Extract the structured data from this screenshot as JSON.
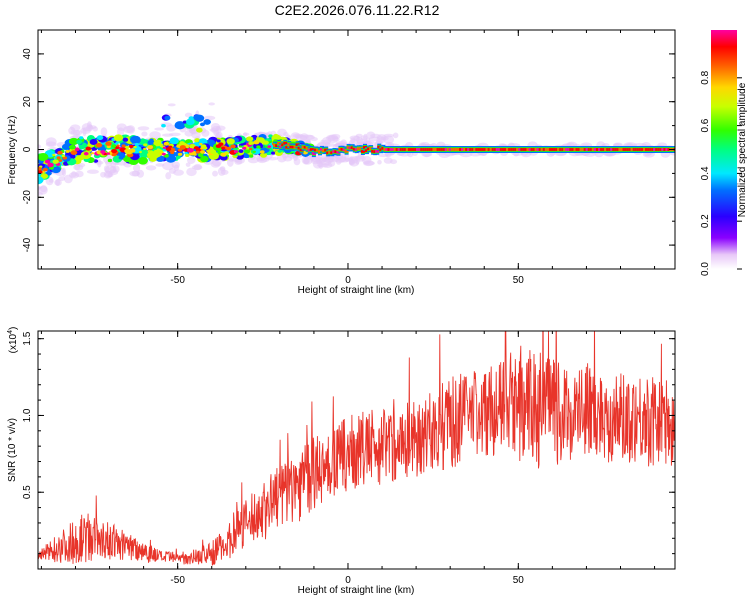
{
  "title": "C2E2.2026.076.11.22.R12",
  "chart_data": [
    {
      "type": "heatmap",
      "xlabel": "Height of straight line (km)",
      "ylabel": "Frequency (Hz)",
      "xlim": [
        -91,
        96
      ],
      "ylim": [
        -50,
        50
      ],
      "xticks": [
        -50,
        0,
        50
      ],
      "yticks": [
        -40,
        -20,
        0,
        20,
        40
      ],
      "colorbar": {
        "label": "Normalized spectral amplitude",
        "range": [
          0.0,
          1.0
        ],
        "ticks": [
          "0.0",
          "0.2",
          "0.4",
          "0.6",
          "0.8"
        ]
      },
      "ridge": [
        {
          "x": -91,
          "f": -8
        },
        {
          "x": -80,
          "f": 0
        },
        {
          "x": -70,
          "f": 0
        },
        {
          "x": -60,
          "f": 0
        },
        {
          "x": -50,
          "f": 0
        },
        {
          "x": -40,
          "f": 0
        },
        {
          "x": -30,
          "f": 1
        },
        {
          "x": -20,
          "f": 2
        },
        {
          "x": -15,
          "f": 1
        },
        {
          "x": -10,
          "f": -1
        },
        {
          "x": 0,
          "f": 0
        },
        {
          "x": 10,
          "f": 0
        },
        {
          "x": 96,
          "f": 0
        }
      ]
    },
    {
      "type": "line",
      "xlabel": "Height of straight line (km)",
      "ylabel": "SNR (10 * v/v)",
      "yscale_note": "(x10",
      "yscale_exp": "4",
      "xlim": [
        -91,
        96
      ],
      "ylim": [
        0,
        1.55
      ],
      "xticks": [
        -50,
        0,
        50
      ],
      "yticks": [
        "0.5",
        "1.0",
        "1.5"
      ],
      "ytick_values": [
        0.5,
        1.0,
        1.5
      ],
      "series": [
        {
          "name": "SNR",
          "color": "#e8342a",
          "x": [
            -91,
            -85,
            -80,
            -75,
            -70,
            -65,
            -60,
            -55,
            -50,
            -45,
            -40,
            -35,
            -30,
            -25,
            -20,
            -15,
            -10,
            -5,
            0,
            5,
            10,
            15,
            20,
            25,
            30,
            35,
            40,
            45,
            50,
            55,
            60,
            65,
            70,
            75,
            80,
            85,
            90,
            96
          ],
          "base": [
            0.08,
            0.14,
            0.18,
            0.2,
            0.18,
            0.15,
            0.12,
            0.08,
            0.07,
            0.08,
            0.1,
            0.18,
            0.3,
            0.38,
            0.48,
            0.55,
            0.62,
            0.68,
            0.75,
            0.78,
            0.8,
            0.82,
            0.85,
            0.9,
            0.95,
            1.0,
            1.02,
            1.05,
            1.05,
            1.05,
            1.02,
            1.0,
            1.05,
            1.0,
            0.98,
            1.0,
            0.95,
            0.95
          ],
          "amp": [
            0.03,
            0.1,
            0.15,
            0.15,
            0.12,
            0.1,
            0.08,
            0.04,
            0.04,
            0.05,
            0.08,
            0.12,
            0.15,
            0.2,
            0.22,
            0.25,
            0.25,
            0.22,
            0.25,
            0.25,
            0.25,
            0.25,
            0.25,
            0.28,
            0.3,
            0.3,
            0.3,
            0.3,
            0.35,
            0.4,
            0.35,
            0.3,
            0.3,
            0.3,
            0.3,
            0.3,
            0.3,
            0.3
          ]
        }
      ]
    }
  ]
}
